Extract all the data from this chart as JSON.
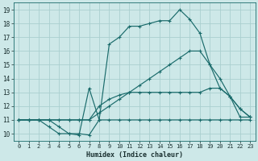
{
  "title": "",
  "xlabel": "Humidex (Indice chaleur)",
  "bg_color": "#cde8e8",
  "grid_color": "#b0d0d0",
  "line_color": "#1a6b6b",
  "xlim": [
    -0.5,
    23.5
  ],
  "ylim": [
    9.5,
    19.5
  ],
  "xticks": [
    0,
    1,
    2,
    3,
    4,
    5,
    6,
    7,
    8,
    9,
    10,
    11,
    12,
    13,
    14,
    15,
    16,
    17,
    18,
    19,
    20,
    21,
    22,
    23
  ],
  "yticks": [
    10,
    11,
    12,
    13,
    14,
    15,
    16,
    17,
    18,
    19
  ],
  "series": [
    {
      "x": [
        0,
        1,
        2,
        3,
        4,
        5,
        6,
        7,
        8,
        9,
        10,
        11,
        12,
        13,
        14,
        15,
        16,
        17,
        18,
        19,
        20,
        21,
        22,
        23
      ],
      "y": [
        11,
        11,
        11,
        11,
        10.5,
        10,
        10,
        9.9,
        11,
        11,
        11,
        11,
        11,
        11,
        11,
        11,
        11,
        11,
        11,
        11,
        11,
        11,
        11,
        11
      ]
    },
    {
      "x": [
        0,
        1,
        2,
        3,
        4,
        5,
        6,
        7,
        8,
        9,
        10,
        11,
        12,
        13,
        14,
        15,
        16,
        17,
        18,
        19,
        20,
        21,
        22,
        23
      ],
      "y": [
        11,
        11,
        11,
        11,
        11,
        11,
        11,
        11,
        12,
        12.5,
        12.8,
        13,
        13,
        13,
        13,
        13,
        13,
        13,
        13,
        13.3,
        13.3,
        12.7,
        11.8,
        11.2
      ]
    },
    {
      "x": [
        0,
        1,
        2,
        3,
        4,
        5,
        6,
        7,
        8,
        9,
        10,
        11,
        12,
        13,
        14,
        15,
        16,
        17,
        18,
        19,
        20,
        21,
        22,
        23
      ],
      "y": [
        11,
        11,
        11,
        11,
        11,
        11,
        11,
        11,
        11.5,
        12,
        12.5,
        13,
        13.5,
        14,
        14.5,
        15,
        15.5,
        16,
        16,
        15,
        14,
        12.7,
        11.8,
        11.2
      ]
    },
    {
      "x": [
        0,
        1,
        2,
        3,
        4,
        5,
        6,
        7,
        8,
        9,
        10,
        11,
        12,
        13,
        14,
        15,
        16,
        17,
        18,
        19,
        20,
        21,
        22,
        23
      ],
      "y": [
        11,
        11,
        11,
        10.5,
        10,
        10,
        9.9,
        13.3,
        11,
        16.5,
        17,
        17.8,
        17.8,
        18,
        18.2,
        18.2,
        19,
        18.3,
        17.3,
        15,
        13.3,
        12.7,
        11.2,
        11.2
      ]
    }
  ]
}
